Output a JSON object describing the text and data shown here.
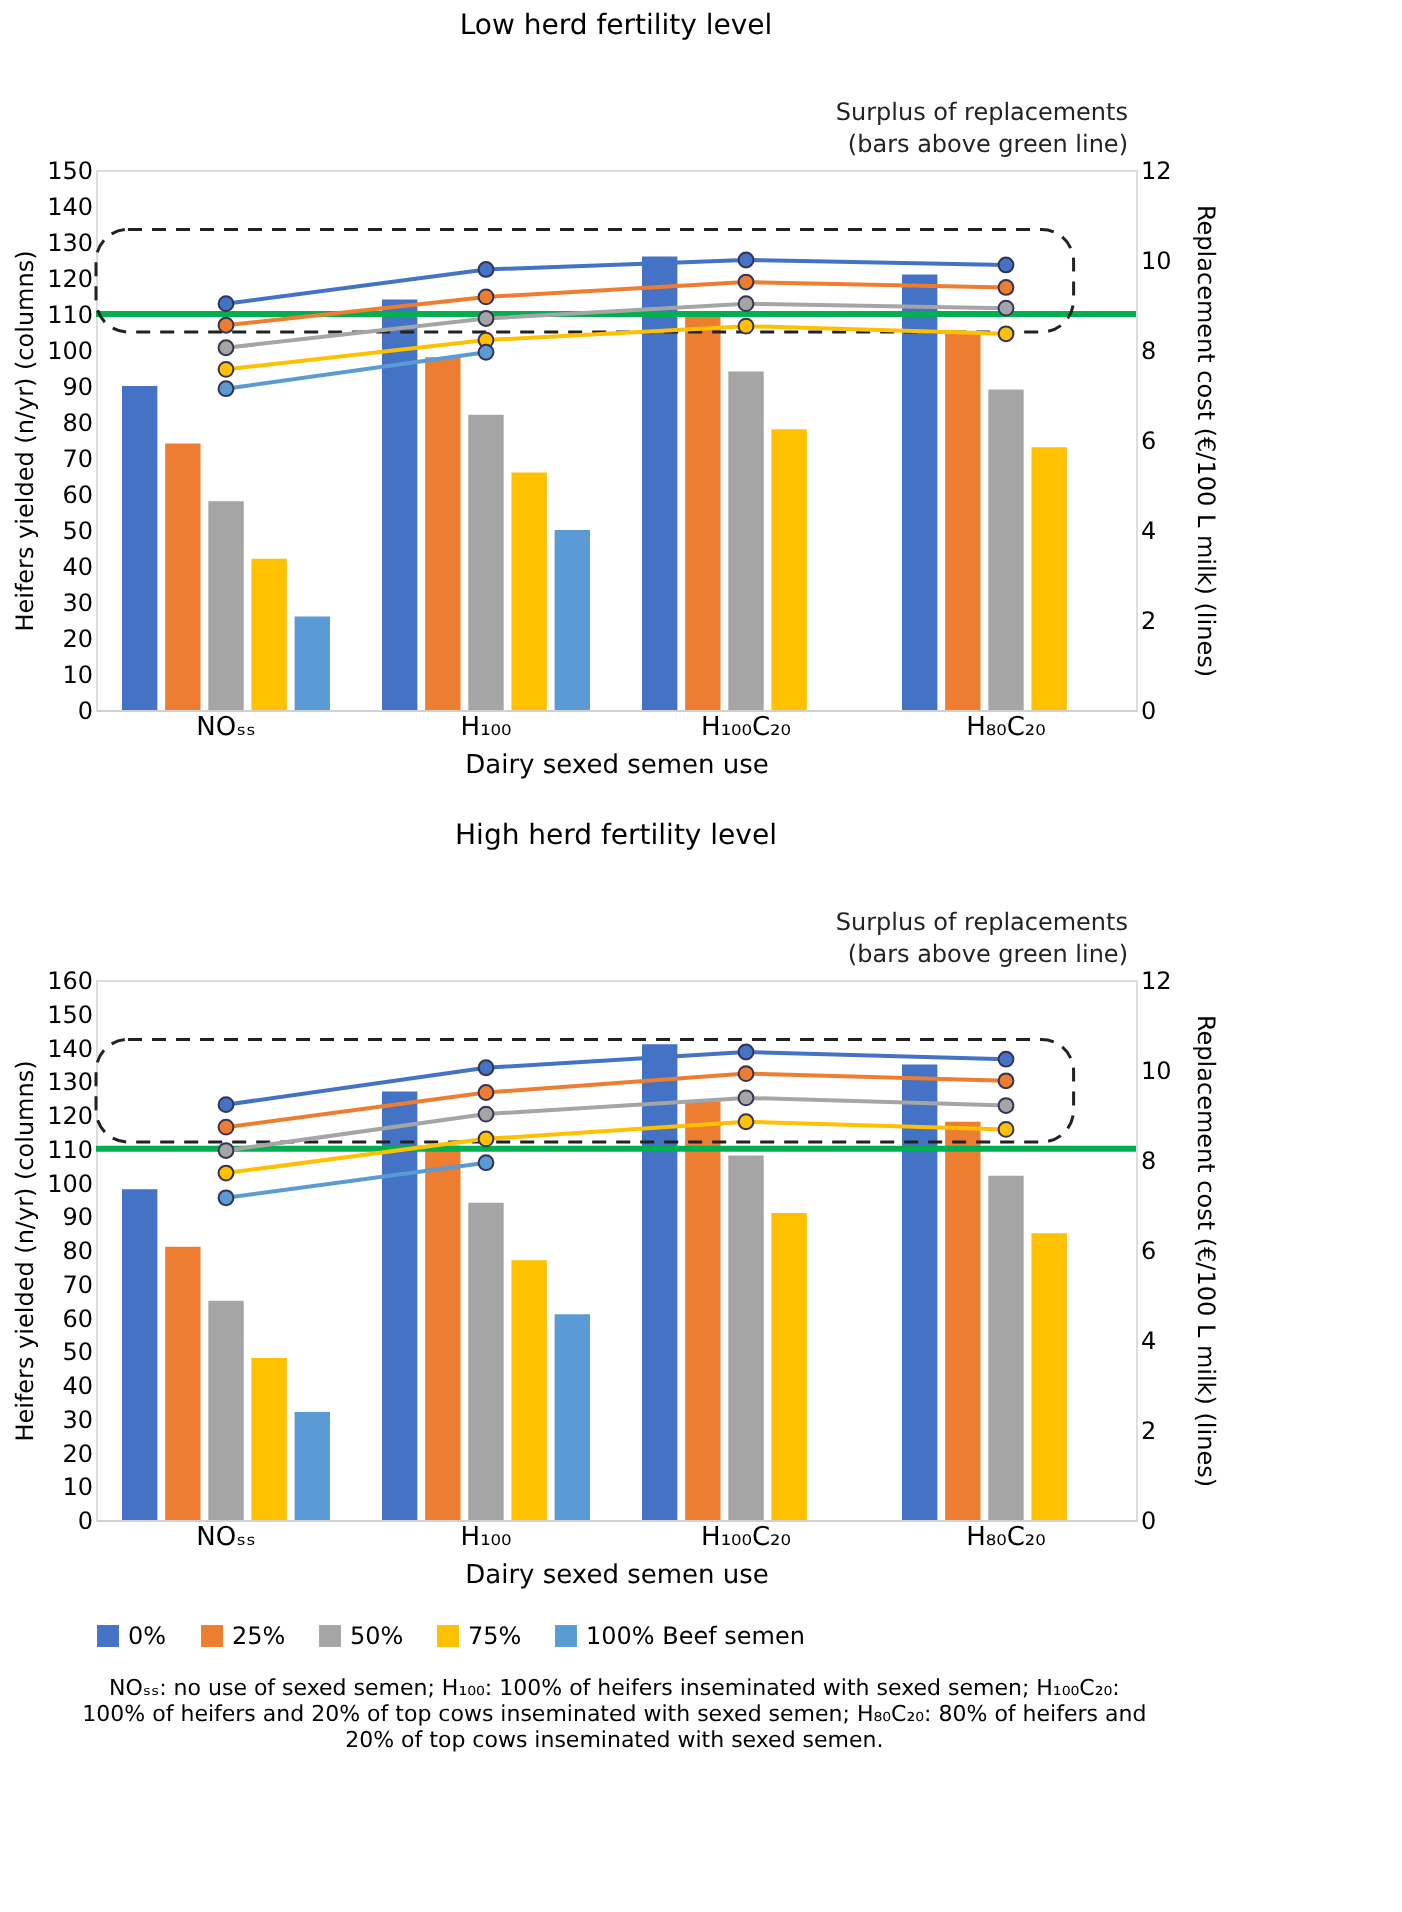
{
  "chart_data": [
    {
      "type": "bar",
      "title": "Low herd fertility level",
      "xlabel": "Dairy sexed semen use",
      "ylabel": "Heifers yielded (n/yr) (columns)",
      "y2label": "Replacement cost (€/100 L milk) (lines)",
      "categories": [
        "NOₛₛ",
        "H₁₀₀",
        "H₁₀₀C₂₀",
        "H₈₀C₂₀"
      ],
      "ylim": [
        0,
        150
      ],
      "yticks": [
        0,
        10,
        20,
        30,
        40,
        50,
        60,
        70,
        80,
        90,
        100,
        110,
        120,
        130,
        140,
        150
      ],
      "y2lim": [
        0,
        12
      ],
      "y2ticks": [
        0,
        2,
        4,
        6,
        8,
        10,
        12
      ],
      "grid": false,
      "legend": false,
      "marker": "circle",
      "series": [
        {
          "color": "#4472c4",
          "values": [
            90,
            114,
            126,
            121
          ]
        },
        {
          "color": "#ed7d31",
          "values": [
            74,
            98,
            110,
            105
          ]
        },
        {
          "color": "#a5a5a5",
          "values": [
            58,
            82,
            94,
            89
          ]
        },
        {
          "color": "#ffc000",
          "values": [
            42,
            66,
            78,
            73
          ]
        },
        {
          "color": "#5b9bd5",
          "values": [
            26,
            50,
            null,
            null
          ]
        },
        {
          "type": "line",
          "axis": "y2",
          "color": "#4472c4",
          "values": [
            9.03,
            9.79,
            10.0,
            9.89
          ]
        },
        {
          "type": "line",
          "axis": "y2",
          "color": "#ed7d31",
          "values": [
            8.55,
            9.18,
            9.51,
            9.39
          ]
        },
        {
          "type": "line",
          "axis": "y2",
          "color": "#a5a5a5",
          "values": [
            8.05,
            8.7,
            9.03,
            8.93
          ]
        },
        {
          "type": "line",
          "axis": "y2",
          "color": "#ffc000",
          "values": [
            7.57,
            8.22,
            8.53,
            8.36
          ]
        },
        {
          "type": "line",
          "axis": "y2",
          "color": "#5b9bd5",
          "values": [
            7.14,
            7.95,
            null,
            null
          ]
        }
      ],
      "ref_lines": [
        {
          "axis": "y",
          "value": 110,
          "color": "#00b050"
        }
      ],
      "annotations": [
        "Surplus of replacements (bars above green line)"
      ]
    },
    {
      "type": "bar",
      "title": "High herd fertility level",
      "xlabel": "Dairy sexed semen use",
      "ylabel": "Heifers yielded (n/yr) (columns)",
      "y2label": "Replacement cost (€/100 L milk) (lines)",
      "categories": [
        "NOₛₛ",
        "H₁₀₀",
        "H₁₀₀C₂₀",
        "H₈₀C₂₀"
      ],
      "ylim": [
        0,
        160
      ],
      "yticks": [
        0,
        10,
        20,
        30,
        40,
        50,
        60,
        70,
        80,
        90,
        100,
        110,
        120,
        130,
        140,
        150,
        160
      ],
      "y2lim": [
        0,
        12
      ],
      "y2ticks": [
        0,
        2,
        4,
        6,
        8,
        10,
        12
      ],
      "grid": false,
      "legend": "bottom",
      "marker": "circle",
      "series": [
        {
          "name": "0%",
          "color": "#4472c4",
          "values": [
            98,
            127,
            141,
            135
          ]
        },
        {
          "name": "25%",
          "color": "#ed7d31",
          "values": [
            81,
            111,
            124,
            118
          ]
        },
        {
          "name": "50%",
          "color": "#a5a5a5",
          "values": [
            65,
            94,
            108,
            102
          ]
        },
        {
          "name": "75%",
          "color": "#ffc000",
          "values": [
            48,
            77,
            91,
            85
          ]
        },
        {
          "name": "100% Beef semen",
          "color": "#5b9bd5",
          "values": [
            32,
            61,
            null,
            null
          ]
        },
        {
          "type": "line",
          "axis": "y2",
          "color": "#4472c4",
          "values": [
            9.23,
            10.05,
            10.4,
            10.24
          ]
        },
        {
          "type": "line",
          "axis": "y2",
          "color": "#ed7d31",
          "values": [
            8.73,
            9.5,
            9.92,
            9.76
          ]
        },
        {
          "type": "line",
          "axis": "y2",
          "color": "#a5a5a5",
          "values": [
            8.21,
            9.02,
            9.38,
            9.21
          ]
        },
        {
          "type": "line",
          "axis": "y2",
          "color": "#ffc000",
          "values": [
            7.71,
            8.47,
            8.85,
            8.68
          ]
        },
        {
          "type": "line",
          "axis": "y2",
          "color": "#5b9bd5",
          "values": [
            7.16,
            7.94,
            null,
            null
          ]
        }
      ],
      "ref_lines": [
        {
          "axis": "y",
          "value": 110,
          "color": "#00b050"
        }
      ],
      "annotations": [
        "Surplus of replacements (bars above green line)",
        "NOₛₛ: no use of sexed semen; H₁₀₀: 100% of heifers inseminated with sexed semen; H₁₀₀C₂₀: 100% of heifers and 20% of top cows inseminated with sexed semen; H₈₀C₂₀: 80% of heifers and 20% of top cows inseminated with sexed semen."
      ]
    }
  ]
}
